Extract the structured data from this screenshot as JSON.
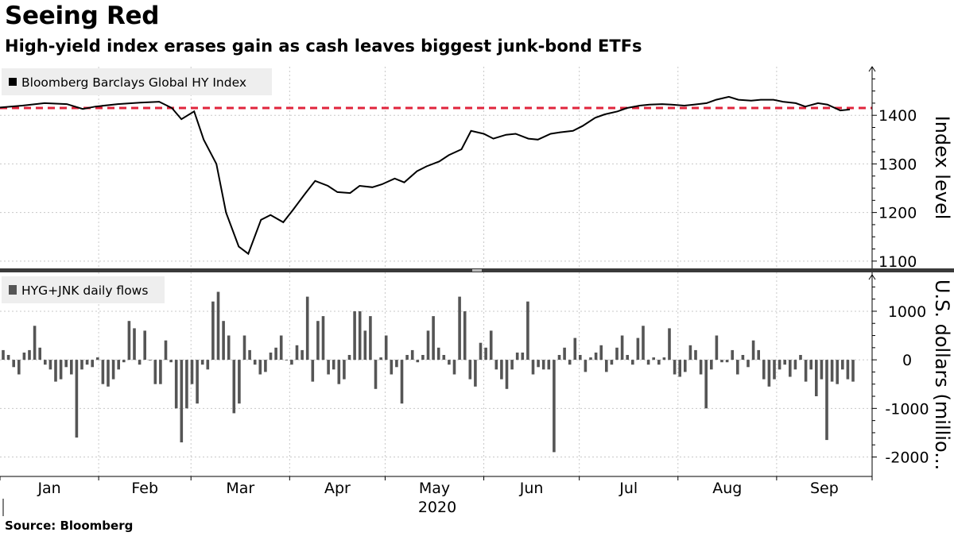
{
  "header": {
    "title": "Seeing Red",
    "subtitle": "High-yield index erases gain as cash leaves biggest junk-bond ETFs"
  },
  "footer": {
    "source": "Source: Bloomberg"
  },
  "colors": {
    "line": "#000000",
    "bars": "#555555",
    "reference": "#e0243c",
    "grid": "#c8c8c8",
    "legend_bg": "#eeeeee"
  },
  "chart_data": [
    {
      "type": "line",
      "legend": "Bloomberg Barclays Global HY Index",
      "ylabel": "Index level",
      "ylim": [
        1085,
        1500
      ],
      "yticks": [
        1100,
        1200,
        1300,
        1400
      ],
      "grid": true,
      "legend_position": "top-left",
      "reference_line": {
        "value": 1415,
        "style": "dashed",
        "color": "#e0243c"
      },
      "series": [
        {
          "x": [
            "2020-01-01",
            "2020-01-08",
            "2020-01-15",
            "2020-01-22",
            "2020-01-27",
            "2020-01-31",
            "2020-02-07",
            "2020-02-14",
            "2020-02-20",
            "2020-02-24",
            "2020-02-27",
            "2020-03-02",
            "2020-03-05",
            "2020-03-09",
            "2020-03-12",
            "2020-03-16",
            "2020-03-19",
            "2020-03-23",
            "2020-03-26",
            "2020-03-30",
            "2020-04-02",
            "2020-04-06",
            "2020-04-09",
            "2020-04-13",
            "2020-04-16",
            "2020-04-20",
            "2020-04-23",
            "2020-04-27",
            "2020-04-30",
            "2020-05-04",
            "2020-05-07",
            "2020-05-11",
            "2020-05-14",
            "2020-05-18",
            "2020-05-21",
            "2020-05-25",
            "2020-05-28",
            "2020-06-01",
            "2020-06-04",
            "2020-06-08",
            "2020-06-11",
            "2020-06-15",
            "2020-06-18",
            "2020-06-22",
            "2020-06-25",
            "2020-06-29",
            "2020-07-02",
            "2020-07-06",
            "2020-07-09",
            "2020-07-13",
            "2020-07-16",
            "2020-07-20",
            "2020-07-23",
            "2020-07-27",
            "2020-07-30",
            "2020-08-03",
            "2020-08-06",
            "2020-08-10",
            "2020-08-13",
            "2020-08-17",
            "2020-08-20",
            "2020-08-24",
            "2020-08-27",
            "2020-08-31",
            "2020-09-03",
            "2020-09-07",
            "2020-09-10",
            "2020-09-14",
            "2020-09-17",
            "2020-09-21",
            "2020-09-24"
          ],
          "values": [
            1416,
            1420,
            1425,
            1423,
            1413,
            1418,
            1423,
            1426,
            1428,
            1415,
            1392,
            1408,
            1350,
            1300,
            1200,
            1130,
            1115,
            1185,
            1195,
            1180,
            1205,
            1240,
            1265,
            1255,
            1242,
            1240,
            1255,
            1252,
            1258,
            1270,
            1262,
            1285,
            1295,
            1305,
            1318,
            1330,
            1368,
            1362,
            1352,
            1360,
            1362,
            1352,
            1350,
            1362,
            1365,
            1368,
            1378,
            1395,
            1402,
            1408,
            1415,
            1420,
            1422,
            1423,
            1422,
            1420,
            1422,
            1425,
            1432,
            1438,
            1432,
            1430,
            1432,
            1432,
            1428,
            1425,
            1418,
            1425,
            1422,
            1410,
            1412
          ]
        }
      ]
    },
    {
      "type": "bar",
      "legend": "HYG+JNK daily flows",
      "ylabel": "U.S. dollars (millio...",
      "ylim": [
        -2400,
        1800
      ],
      "yticks": [
        -2000,
        -1000,
        0,
        1000
      ],
      "grid": true,
      "legend_position": "top-left",
      "series": [
        {
          "values": [
            200,
            100,
            -150,
            -300,
            150,
            200,
            700,
            250,
            -100,
            -200,
            -450,
            -400,
            -150,
            -300,
            -1600,
            -200,
            -100,
            -150,
            50,
            -500,
            -550,
            -400,
            -200,
            -50,
            800,
            650,
            -100,
            600,
            0,
            -500,
            -500,
            400,
            -50,
            -1000,
            -1700,
            -1000,
            -500,
            -900,
            -100,
            -200,
            1200,
            1400,
            800,
            500,
            -1100,
            -900,
            500,
            200,
            -100,
            -300,
            -250,
            150,
            250,
            500,
            0,
            -100,
            300,
            200,
            1300,
            -450,
            800,
            900,
            -300,
            -200,
            -500,
            -400,
            100,
            1000,
            1000,
            600,
            900,
            -600,
            50,
            500,
            -300,
            -150,
            -900,
            100,
            200,
            -50,
            100,
            600,
            900,
            250,
            100,
            -100,
            -300,
            1300,
            1000,
            -400,
            -550,
            350,
            250,
            600,
            -200,
            -400,
            -600,
            -200,
            150,
            150,
            1200,
            -300,
            -150,
            -200,
            -200,
            -1900,
            100,
            250,
            -100,
            450,
            100,
            -250,
            50,
            150,
            300,
            -250,
            -100,
            250,
            500,
            100,
            -100,
            450,
            700,
            -100,
            50,
            -100,
            50,
            650,
            -300,
            -350,
            -250,
            300,
            200,
            -300,
            -1000,
            -200,
            500,
            -50,
            -50,
            200,
            -300,
            100,
            -150,
            400,
            200,
            -400,
            -550,
            -400,
            -200,
            -100,
            -350,
            -200,
            100,
            -450,
            -200,
            -750,
            -400,
            -1650,
            -450,
            -500,
            -200,
            -400,
            -450
          ]
        }
      ]
    },
    {
      "type": "axis",
      "xticks": [
        "Jan",
        "Feb",
        "Mar",
        "Apr",
        "May",
        "Jun",
        "Jul",
        "Aug",
        "Sep"
      ],
      "xlabel": "2020"
    }
  ]
}
